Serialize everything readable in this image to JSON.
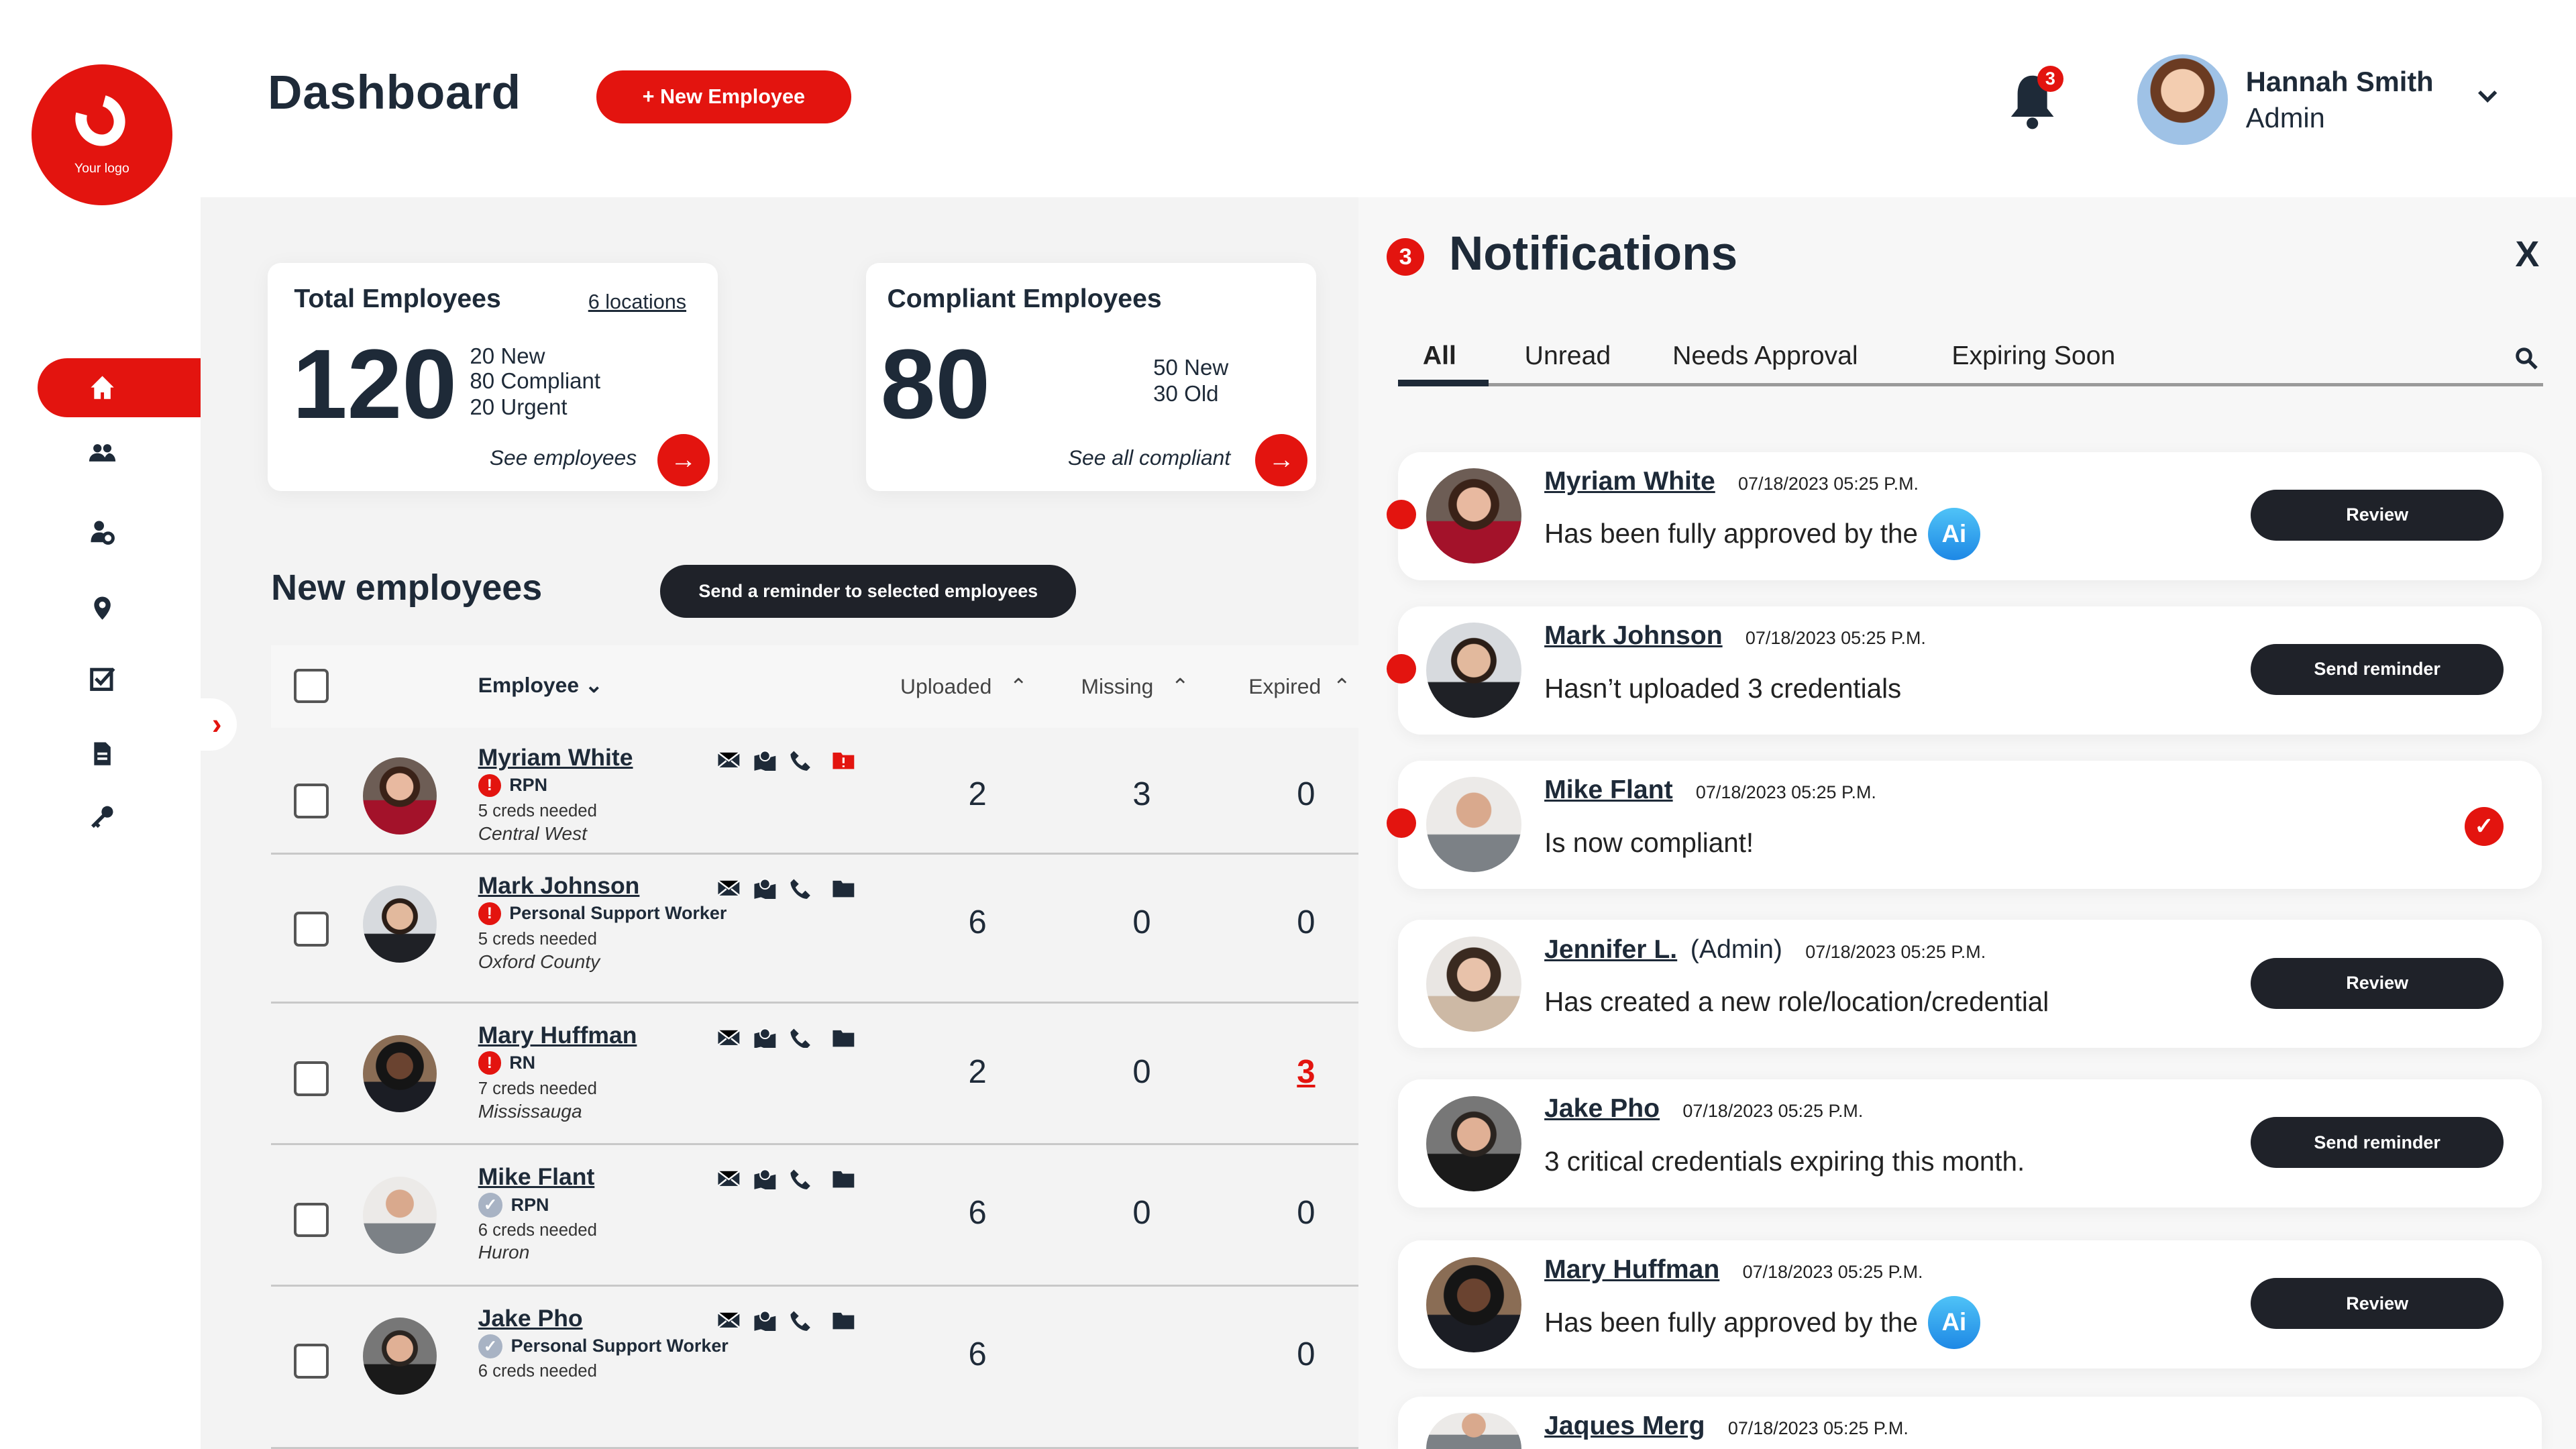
{
  "colors": {
    "accent": "#e3140f",
    "dark": "#1f2229",
    "ai": "#29a3ec"
  },
  "logo": {
    "text": "Your logo"
  },
  "sidebar": {
    "items": [
      {
        "icon": "home-icon",
        "active": true
      },
      {
        "icon": "users-icon"
      },
      {
        "icon": "user-settings-icon"
      },
      {
        "icon": "location-pin-icon"
      },
      {
        "icon": "checklist-icon"
      },
      {
        "icon": "document-icon"
      },
      {
        "icon": "key-icon"
      }
    ],
    "expand_icon": "chevron-right-icon",
    "expand_glyph": "›"
  },
  "header": {
    "title": "Dashboard",
    "new_employee": "+ New Employee",
    "notifications_count": "3",
    "user": {
      "name": "Hannah Smith",
      "role": "Admin"
    }
  },
  "cards": {
    "total": {
      "title": "Total Employees",
      "link": "6 locations",
      "value": "120",
      "lines": [
        "20 New",
        "80 Compliant",
        "20 Urgent"
      ],
      "cta": "See employees"
    },
    "compliant": {
      "title": "Compliant Employees",
      "value": "80",
      "lines": [
        "50 New",
        "30 Old"
      ],
      "cta": "See all compliant"
    }
  },
  "new_employees": {
    "title": "New employees",
    "reminder_button": "Send a reminder to selected employees",
    "columns": {
      "employee": "Employee",
      "uploaded": "Uploaded",
      "missing": "Missing",
      "expired": "Expired"
    },
    "rows": [
      {
        "name": "Myriam White",
        "status": "alert",
        "role": "RPN",
        "creds": "5 creds needed",
        "location": "Central West",
        "uploaded": "2",
        "missing": "3",
        "expired": "0",
        "folder_alert": true
      },
      {
        "name": "Mark Johnson",
        "status": "alert",
        "role": "Personal Support Worker",
        "creds": "5 creds needed",
        "location": "Oxford County",
        "uploaded": "6",
        "missing": "0",
        "expired": "0"
      },
      {
        "name": "Mary Huffman",
        "status": "alert",
        "role": "RN",
        "creds": "7 creds needed",
        "location": "Mississauga",
        "uploaded": "2",
        "missing": "0",
        "expired": "3",
        "expired_alert": true
      },
      {
        "name": "Mike Flant",
        "status": "ok",
        "role": "RPN",
        "creds": "6 creds needed",
        "location": "Huron",
        "uploaded": "6",
        "missing": "0",
        "expired": "0"
      },
      {
        "name": "Jake Pho",
        "status": "ok",
        "role": "Personal Support Worker",
        "creds": "6 creds needed",
        "location": "",
        "uploaded": "6",
        "missing": "",
        "expired": "0"
      }
    ]
  },
  "notifications": {
    "count": "3",
    "title": "Notifications",
    "close": "X",
    "tabs": [
      "All",
      "Unread",
      "Needs Approval",
      "Expiring Soon"
    ],
    "active_tab": "All",
    "items": [
      {
        "name": "Myriam White",
        "suffix": "",
        "date": "07/18/2023 05:25 P.M.",
        "message": "Has been fully approved by the",
        "ai": "Ai",
        "action": "Review",
        "unread": true
      },
      {
        "name": "Mark Johnson",
        "suffix": "",
        "date": "07/18/2023 05:25 P.M.",
        "message": "Hasn’t uploaded 3 credentials",
        "action": "Send reminder",
        "unread": true
      },
      {
        "name": "Mike Flant",
        "suffix": "",
        "date": "07/18/2023 05:25 P.M.",
        "message": "Is now compliant!",
        "action": "",
        "check": true,
        "unread": true
      },
      {
        "name": "Jennifer L.",
        "suffix": "(Admin)",
        "date": "07/18/2023 05:25 P.M.",
        "message": "Has created a new role/location/credential",
        "action": "Review"
      },
      {
        "name": "Jake Pho",
        "suffix": "",
        "date": "07/18/2023 05:25 P.M.",
        "message": "3 critical credentials expiring this month.",
        "action": "Send reminder"
      },
      {
        "name": "Mary Huffman",
        "suffix": "",
        "date": "07/18/2023 05:25 P.M.",
        "message": "Has been fully approved by the",
        "ai": "Ai",
        "action": "Review"
      },
      {
        "name": "Jaques Merg",
        "suffix": "",
        "date": "07/18/2023 05:25 P.M.",
        "message": "",
        "action": ""
      }
    ]
  }
}
